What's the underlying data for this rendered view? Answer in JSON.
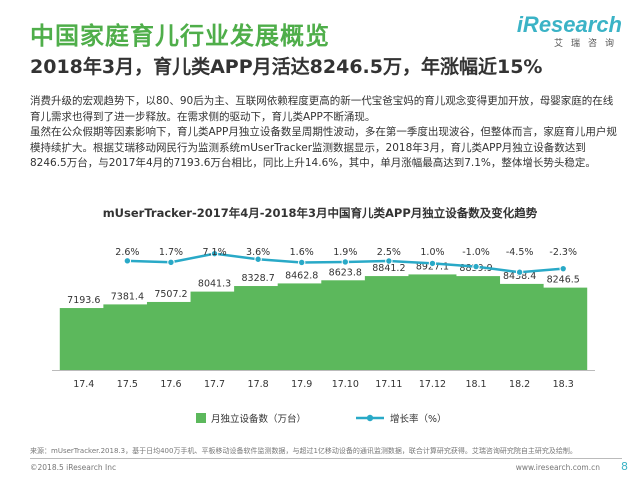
{
  "header": {
    "title": "中国家庭育儿行业发展概览",
    "subtitle": "2018年3月，育儿类APP月活达8246.5万，年涨幅近15%"
  },
  "logo": {
    "main": "iResearch",
    "sub": "艾瑞咨询"
  },
  "body": {
    "p1": "消费升级的宏观趋势下，以80、90后为主、互联网依赖程度更高的新一代宝爸宝妈的育儿观念变得更加开放，母婴家庭的在线育儿需求也得到了进一步释放。在需求侧的驱动下，育儿类APP不断涌现。",
    "p2": "虽然在公众假期等因素影响下，育儿类APP月独立设备数呈周期性波动，多在第一季度出现波谷，但整体而言，家庭育儿用户规模持续扩大。根据艾瑞移动网民行为监测系统mUserTracker监测数据显示，2018年3月，育儿类APP月独立设备数达到8246.5万台，与2017年4月的7193.6万台相比，同比上升14.6%，其中，单月涨幅最高达到7.1%，整体增长势头稳定。"
  },
  "chart_data": {
    "type": "bar",
    "title": "mUserTracker-2017年4月-2018年3月中国育儿类APP月独立设备数及变化趋势",
    "categories": [
      "17.4",
      "17.5",
      "17.6",
      "17.7",
      "17.8",
      "17.9",
      "17.10",
      "17.11",
      "17.12",
      "18.1",
      "18.2",
      "18.3"
    ],
    "series": [
      {
        "name": "月独立设备数（万台）",
        "type": "bar",
        "values": [
          7193.6,
          7381.4,
          7507.2,
          8041.3,
          8328.7,
          8462.8,
          8623.8,
          8841.2,
          8927.1,
          8839.9,
          8438.4,
          8246.5
        ],
        "labels": [
          "7193.6",
          "7381.4",
          "7507.2",
          "8041.3",
          "8328.7",
          "8462.8",
          "8623.8",
          "8841.2",
          "8927.1",
          "8839.9",
          "8438.4",
          "8246.5"
        ]
      },
      {
        "name": "增长率（%）",
        "type": "line",
        "values": [
          null,
          2.6,
          1.7,
          7.1,
          3.6,
          1.6,
          1.9,
          2.5,
          1.0,
          -1.0,
          -4.5,
          -2.3
        ],
        "labels": [
          "",
          "2.6%",
          "1.7%",
          "7.1%",
          "3.6%",
          "1.6%",
          "1.9%",
          "2.5%",
          "1.0%",
          "-1.0%",
          "-4.5%",
          "-2.3%"
        ]
      }
    ],
    "colors": {
      "bar": "#5cb85c",
      "line": "#29a9c7"
    },
    "legend": "bottom"
  },
  "footer": {
    "source": "来源：mUserTracker.2018.3，基于日均400万手机、平板移动设备软件监测数据，与超过1亿移动设备的通讯监测数据，联合计算研究获得。艾瑞咨询研究院自主研究及绘制。",
    "copyright": "©2018.5 iResearch Inc",
    "website": "www.iresearch.com.cn",
    "page": "8"
  }
}
